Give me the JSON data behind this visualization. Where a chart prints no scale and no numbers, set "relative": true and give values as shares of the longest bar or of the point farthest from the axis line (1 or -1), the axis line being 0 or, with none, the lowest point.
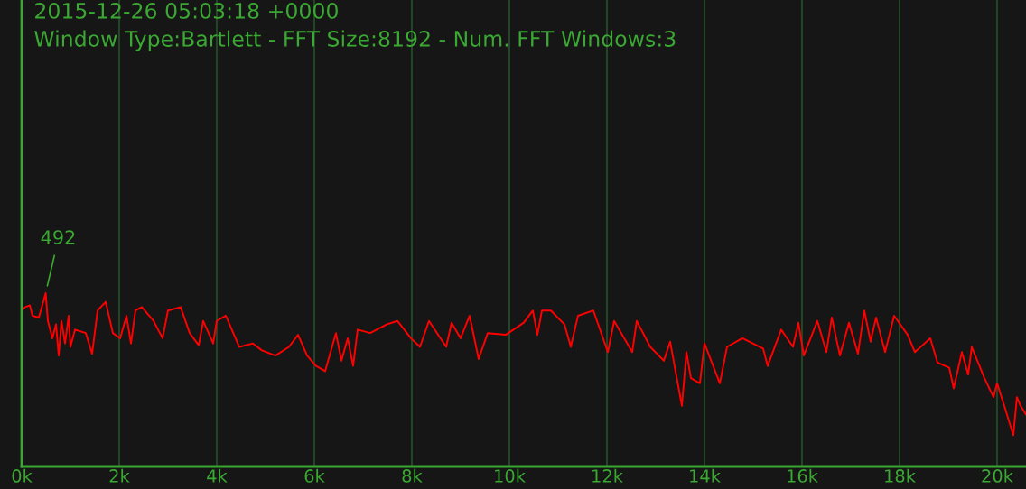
{
  "chart_data": {
    "type": "line",
    "title": "2015-12-26 05:03:18 +0000",
    "subtitle": "Window Type:Bartlett - FFT Size:8192 - Num. FFT Windows:3",
    "relative": true,
    "grid": "x",
    "legend": false,
    "marker": "none",
    "line_style": "solid",
    "xlim": [
      0,
      20593
    ],
    "xticks": [
      {
        "value": 0,
        "label": "0k"
      },
      {
        "value": 2000,
        "label": "2k"
      },
      {
        "value": 4000,
        "label": "4k"
      },
      {
        "value": 6000,
        "label": "6k"
      },
      {
        "value": 8000,
        "label": "8k"
      },
      {
        "value": 10000,
        "label": "10k"
      },
      {
        "value": 12000,
        "label": "12k"
      },
      {
        "value": 14000,
        "label": "14k"
      },
      {
        "value": 16000,
        "label": "16k"
      },
      {
        "value": 18000,
        "label": "18k"
      },
      {
        "value": 20000,
        "label": "20k"
      }
    ],
    "annotations": [
      "492"
    ],
    "series": [
      {
        "color": "#ff0000",
        "x": [
          0,
          74,
          167,
          222,
          352,
          492,
          537,
          630,
          704,
          759,
          815,
          889,
          963,
          1000,
          1093,
          1315,
          1444,
          1556,
          1722,
          1870,
          2019,
          2148,
          2241,
          2333,
          2463,
          2704,
          2889,
          3000,
          3259,
          3444,
          3630,
          3722,
          3926,
          4000,
          4185,
          4463,
          4741,
          4926,
          5204,
          5481,
          5667,
          5852,
          6037,
          6222,
          6444,
          6556,
          6685,
          6796,
          6889,
          7148,
          7481,
          7704,
          7981,
          8167,
          8352,
          8704,
          8815,
          9000,
          9185,
          9370,
          9556,
          9926,
          10296,
          10481,
          10574,
          10667,
          10852,
          11130,
          11259,
          11407,
          11722,
          12019,
          12148,
          12519,
          12611,
          12889,
          13167,
          13296,
          13537,
          13630,
          13722,
          13907,
          14000,
          14315,
          14463,
          14778,
          15204,
          15296,
          15574,
          15815,
          15926,
          16037,
          16315,
          16500,
          16611,
          16778,
          16963,
          17148,
          17278,
          17407,
          17519,
          17704,
          17889,
          18167,
          18315,
          18630,
          18778,
          19019,
          19111,
          19278,
          19407,
          19481,
          19741,
          19926,
          20000,
          20148,
          20333,
          20407,
          20481,
          20593
        ],
        "values": [
          0.9,
          0.92,
          0.93,
          0.87,
          0.86,
          1.0,
          0.84,
          0.74,
          0.82,
          0.64,
          0.84,
          0.71,
          0.87,
          0.69,
          0.79,
          0.77,
          0.65,
          0.9,
          0.95,
          0.77,
          0.74,
          0.87,
          0.71,
          0.9,
          0.92,
          0.84,
          0.74,
          0.9,
          0.92,
          0.77,
          0.7,
          0.84,
          0.71,
          0.84,
          0.87,
          0.69,
          0.71,
          0.67,
          0.64,
          0.69,
          0.76,
          0.64,
          0.58,
          0.55,
          0.77,
          0.61,
          0.74,
          0.58,
          0.79,
          0.77,
          0.82,
          0.84,
          0.74,
          0.69,
          0.84,
          0.69,
          0.83,
          0.74,
          0.87,
          0.62,
          0.77,
          0.76,
          0.83,
          0.9,
          0.76,
          0.9,
          0.9,
          0.82,
          0.69,
          0.87,
          0.9,
          0.66,
          0.84,
          0.66,
          0.84,
          0.69,
          0.61,
          0.72,
          0.35,
          0.66,
          0.51,
          0.48,
          0.71,
          0.48,
          0.69,
          0.74,
          0.68,
          0.58,
          0.79,
          0.69,
          0.83,
          0.64,
          0.84,
          0.66,
          0.86,
          0.64,
          0.83,
          0.65,
          0.9,
          0.72,
          0.86,
          0.66,
          0.87,
          0.76,
          0.66,
          0.74,
          0.6,
          0.57,
          0.45,
          0.66,
          0.53,
          0.69,
          0.51,
          0.4,
          0.48,
          0.35,
          0.18,
          0.4,
          0.35,
          0.3
        ]
      }
    ]
  }
}
